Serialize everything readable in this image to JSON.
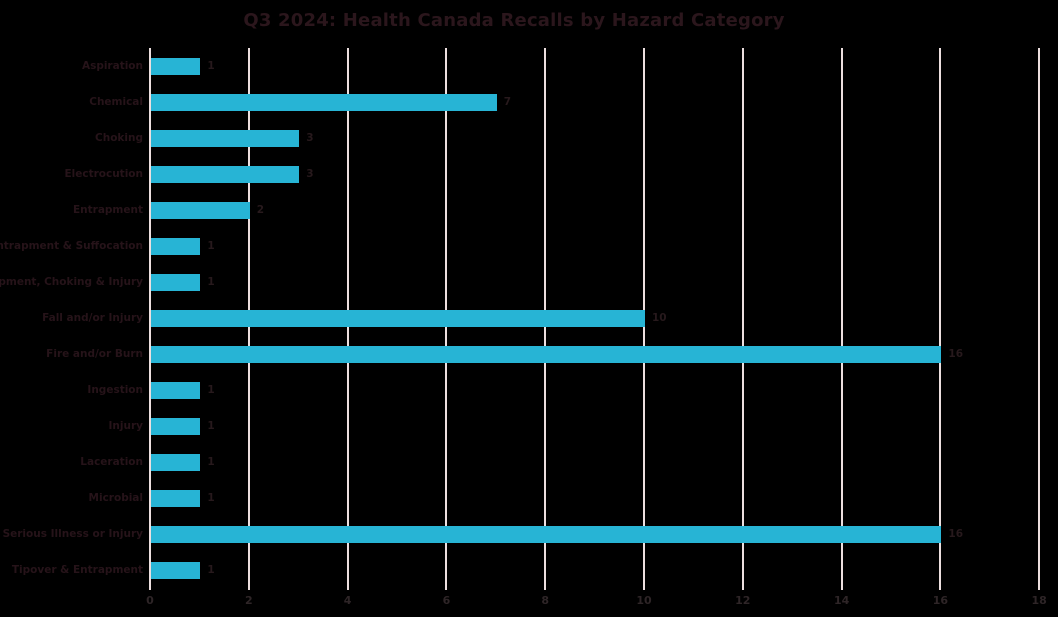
{
  "chart_data": {
    "type": "bar",
    "orientation": "horizontal",
    "title": "Q3 2024: Health Canada Recalls by Hazard Category",
    "categories": [
      "Aspiration",
      "Chemical",
      "Choking",
      "Electrocution",
      "Entrapment",
      "Entrapment & Suffocation",
      "Entrapment, Choking & Injury",
      "Fall and/or Injury",
      "Fire and/or Burn",
      "Ingestion",
      "Injury",
      "Laceration",
      "Microbial",
      "Serious Illness or Injury",
      "Tipover & Entrapment"
    ],
    "values": [
      1,
      7,
      3,
      3,
      2,
      1,
      1,
      10,
      16,
      1,
      1,
      1,
      1,
      16,
      1
    ],
    "data_labels": [
      "1",
      "7",
      "3",
      "3",
      "2",
      "1",
      "1",
      "10",
      "16",
      "1",
      "1",
      "1",
      "1",
      "16",
      "1"
    ],
    "x_ticks": [
      "0",
      "2",
      "4",
      "6",
      "8",
      "10",
      "12",
      "14",
      "16",
      "18"
    ],
    "xlim": [
      0,
      18
    ],
    "xlabel": "",
    "ylabel": "",
    "grid": "vertical-only",
    "legend": "none",
    "colors": {
      "background": "#000000",
      "bar": "#27b4d5",
      "gridline": "#ecdfdf",
      "title_text": "#2b161c",
      "category_text": "#261319",
      "value_text": "#27191c",
      "tick_text": "#2e2527"
    }
  }
}
